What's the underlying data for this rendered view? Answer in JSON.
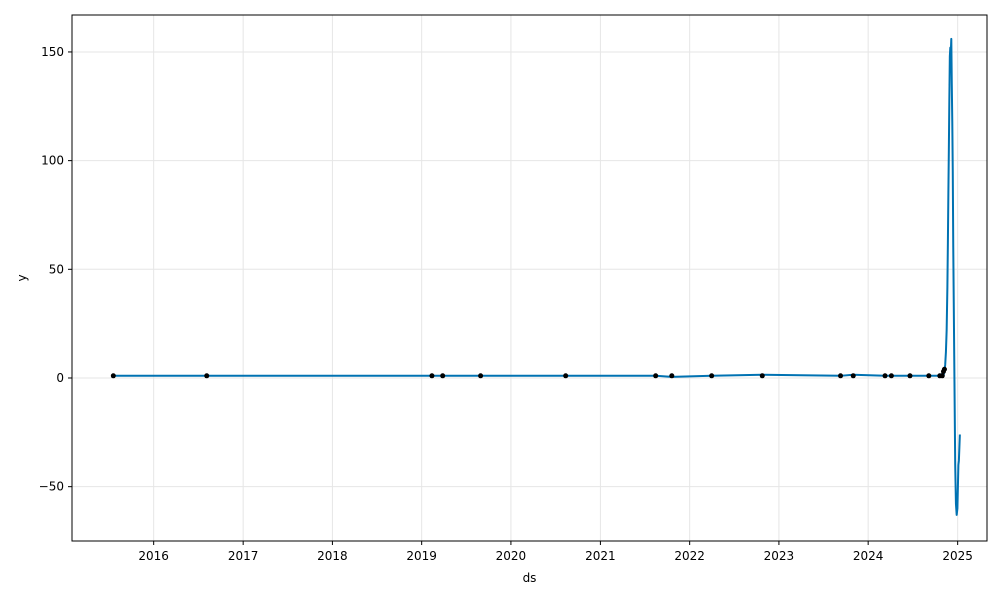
{
  "chart_data": {
    "type": "line",
    "title": "",
    "xlabel": "ds",
    "ylabel": "y",
    "grid": true,
    "legend": "none",
    "x_axis": {
      "kind": "date",
      "range": [
        "2015-02-01",
        "2025-05-01"
      ],
      "ticks": [
        "2016-01-01",
        "2017-01-01",
        "2018-01-01",
        "2019-01-01",
        "2020-01-01",
        "2021-01-01",
        "2022-01-01",
        "2023-01-01",
        "2024-01-01",
        "2025-01-01"
      ],
      "tick_labels": [
        "2016",
        "2017",
        "2018",
        "2019",
        "2020",
        "2021",
        "2022",
        "2023",
        "2024",
        "2025"
      ]
    },
    "y_axis": {
      "range": [
        -75,
        167
      ],
      "ticks": [
        -50,
        0,
        50,
        100,
        150
      ],
      "tick_labels": [
        "−50",
        "0",
        "50",
        "100",
        "150"
      ]
    },
    "colors": {
      "line": "#0072b2",
      "points": "#000000",
      "grid": "#e6e6e6"
    },
    "series": [
      {
        "kind": "forecast-line",
        "x": [
          "2015-07-20",
          "2016-08-05",
          "2019-02-12",
          "2019-03-28",
          "2019-08-30",
          "2020-08-12",
          "2021-08-15",
          "2021-10-20",
          "2022-04-01",
          "2022-10-25",
          "2023-09-10",
          "2023-11-01",
          "2024-03-10",
          "2024-04-05",
          "2024-06-20",
          "2024-09-05",
          "2024-10-20",
          "2024-10-30",
          "2024-11-04",
          "2024-11-08",
          "2024-11-11",
          "2024-11-14",
          "2024-11-17",
          "2024-11-20",
          "2024-11-22",
          "2024-11-24",
          "2024-11-26",
          "2024-11-28",
          "2024-11-30",
          "2024-12-02",
          "2024-12-04",
          "2024-12-06",
          "2024-12-08",
          "2024-12-10",
          "2024-12-12",
          "2024-12-14",
          "2024-12-16",
          "2024-12-18",
          "2024-12-20",
          "2024-12-22",
          "2024-12-25",
          "2024-12-28",
          "2024-12-31",
          "2025-01-02",
          "2025-01-04",
          "2025-01-06",
          "2025-01-08",
          "2025-01-10"
        ],
        "y": [
          1,
          1,
          1,
          1,
          1,
          1,
          1,
          0.5,
          1,
          1.5,
          1,
          1.5,
          1,
          1,
          1,
          1,
          1,
          2,
          1,
          3,
          6,
          12,
          22,
          42,
          62,
          85,
          105,
          128,
          148,
          152,
          150,
          156,
          135,
          118,
          95,
          60,
          35,
          10,
          -15,
          -40,
          -58,
          -63,
          -60,
          -50,
          -40,
          -38,
          -32,
          -26
        ]
      },
      {
        "kind": "observed-points",
        "x": [
          "2015-07-20",
          "2016-08-05",
          "2019-02-12",
          "2019-03-28",
          "2019-08-30",
          "2020-08-12",
          "2021-08-15",
          "2021-10-20",
          "2022-04-01",
          "2022-10-25",
          "2023-09-10",
          "2023-11-01",
          "2024-03-10",
          "2024-04-05",
          "2024-06-20",
          "2024-09-05",
          "2024-10-20",
          "2024-10-30",
          "2024-11-04",
          "2024-11-08"
        ],
        "y": [
          1,
          1,
          1,
          1,
          1,
          1,
          1,
          1,
          1,
          1,
          1,
          1,
          1,
          1,
          1,
          1,
          1,
          1,
          3,
          4
        ]
      }
    ]
  }
}
